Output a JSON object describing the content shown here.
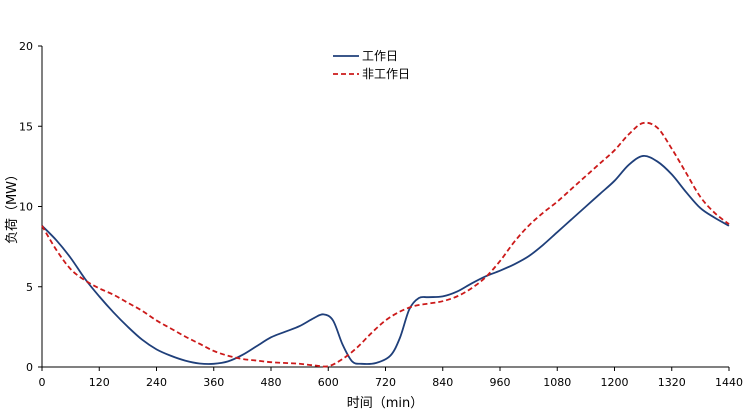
{
  "chart_data": {
    "type": "line",
    "xlabel": "时间（min）",
    "ylabel": "负荷（MW）",
    "xlim": [
      0,
      1440
    ],
    "ylim": [
      0,
      20
    ],
    "x_ticks": [
      0,
      120,
      240,
      360,
      480,
      600,
      720,
      840,
      960,
      1080,
      1200,
      1320,
      1440
    ],
    "y_ticks": [
      0,
      5,
      10,
      15,
      20
    ],
    "grid": false,
    "legend_position": "top-center",
    "series": [
      {
        "name": "工作日",
        "color": "#1f3f7a",
        "style": "solid",
        "points": [
          [
            0,
            8.8
          ],
          [
            30,
            7.9
          ],
          [
            60,
            6.8
          ],
          [
            90,
            5.5
          ],
          [
            120,
            4.4
          ],
          [
            150,
            3.4
          ],
          [
            180,
            2.5
          ],
          [
            210,
            1.7
          ],
          [
            240,
            1.1
          ],
          [
            270,
            0.7
          ],
          [
            300,
            0.4
          ],
          [
            330,
            0.22
          ],
          [
            360,
            0.2
          ],
          [
            390,
            0.35
          ],
          [
            420,
            0.75
          ],
          [
            450,
            1.3
          ],
          [
            480,
            1.85
          ],
          [
            510,
            2.2
          ],
          [
            540,
            2.55
          ],
          [
            570,
            3.05
          ],
          [
            590,
            3.28
          ],
          [
            610,
            2.9
          ],
          [
            630,
            1.4
          ],
          [
            650,
            0.35
          ],
          [
            670,
            0.2
          ],
          [
            700,
            0.25
          ],
          [
            730,
            0.7
          ],
          [
            750,
            1.8
          ],
          [
            770,
            3.6
          ],
          [
            790,
            4.3
          ],
          [
            810,
            4.35
          ],
          [
            840,
            4.4
          ],
          [
            870,
            4.7
          ],
          [
            900,
            5.2
          ],
          [
            930,
            5.65
          ],
          [
            960,
            6.0
          ],
          [
            990,
            6.4
          ],
          [
            1020,
            6.9
          ],
          [
            1050,
            7.6
          ],
          [
            1080,
            8.4
          ],
          [
            1110,
            9.2
          ],
          [
            1140,
            10.0
          ],
          [
            1170,
            10.8
          ],
          [
            1200,
            11.6
          ],
          [
            1230,
            12.6
          ],
          [
            1260,
            13.15
          ],
          [
            1290,
            12.8
          ],
          [
            1320,
            12.0
          ],
          [
            1350,
            10.9
          ],
          [
            1380,
            9.9
          ],
          [
            1410,
            9.3
          ],
          [
            1440,
            8.8
          ]
        ]
      },
      {
        "name": "非工作日",
        "color": "#cc1a1a",
        "style": "dashed",
        "points": [
          [
            0,
            8.8
          ],
          [
            30,
            7.3
          ],
          [
            60,
            6.1
          ],
          [
            90,
            5.4
          ],
          [
            120,
            4.9
          ],
          [
            150,
            4.5
          ],
          [
            180,
            4.0
          ],
          [
            210,
            3.5
          ],
          [
            240,
            2.9
          ],
          [
            270,
            2.4
          ],
          [
            300,
            1.9
          ],
          [
            330,
            1.45
          ],
          [
            360,
            1.0
          ],
          [
            390,
            0.7
          ],
          [
            420,
            0.5
          ],
          [
            450,
            0.4
          ],
          [
            480,
            0.3
          ],
          [
            510,
            0.25
          ],
          [
            540,
            0.2
          ],
          [
            570,
            0.1
          ],
          [
            600,
            0.05
          ],
          [
            630,
            0.5
          ],
          [
            660,
            1.2
          ],
          [
            690,
            2.1
          ],
          [
            720,
            2.9
          ],
          [
            750,
            3.45
          ],
          [
            780,
            3.8
          ],
          [
            810,
            3.95
          ],
          [
            840,
            4.1
          ],
          [
            870,
            4.4
          ],
          [
            900,
            4.9
          ],
          [
            930,
            5.6
          ],
          [
            960,
            6.6
          ],
          [
            990,
            7.8
          ],
          [
            1020,
            8.8
          ],
          [
            1050,
            9.6
          ],
          [
            1080,
            10.3
          ],
          [
            1110,
            11.1
          ],
          [
            1140,
            11.9
          ],
          [
            1170,
            12.7
          ],
          [
            1200,
            13.5
          ],
          [
            1230,
            14.5
          ],
          [
            1260,
            15.2
          ],
          [
            1290,
            14.9
          ],
          [
            1320,
            13.6
          ],
          [
            1350,
            12.1
          ],
          [
            1380,
            10.6
          ],
          [
            1410,
            9.6
          ],
          [
            1440,
            8.9
          ]
        ]
      }
    ]
  }
}
